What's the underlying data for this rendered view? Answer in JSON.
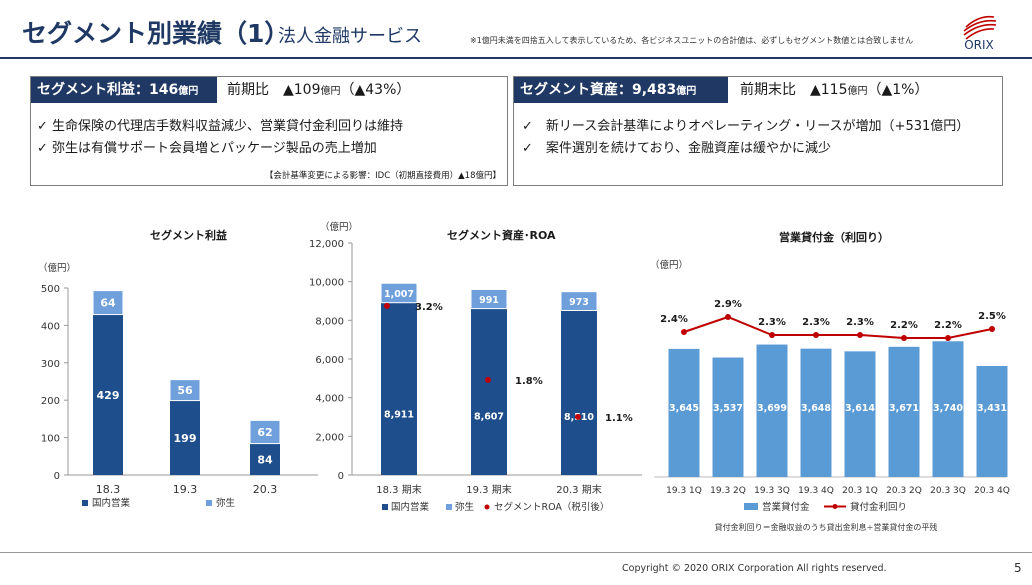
{
  "header": {
    "title": "セグメント別業績（1）",
    "subtitle": "法人金融サービス",
    "note": "※1億円未満を四捨五入して表示しているため、各ビジネスユニットの合計値は、必ずしもセグメント数値とは合致しません",
    "logo_text": "ORIX"
  },
  "profit_box": {
    "head_label": "セグメント利益：146",
    "head_unit": "億円",
    "cmp_prefix": "前期比　▲109",
    "cmp_unit": "億円",
    "cmp_suffix": "（▲43%）",
    "bullets": [
      "✓ 生命保険の代理店手数料収益減少、営業貸付金利回りは維持",
      "✓ 弥生は有償サポート会員増とパッケージ製品の売上増加"
    ],
    "note": "【会計基準変更による影響：IDC（初期直接費用）▲18億円】"
  },
  "assets_box": {
    "head_label": "セグメント資産：9,483",
    "head_unit": "億円",
    "cmp_prefix": "前期末比　▲115",
    "cmp_unit": "億円",
    "cmp_suffix": "（▲1%）",
    "bullets": [
      "✓　新リース会計基準によりオペレーティング・リースが増加（+531億円）",
      "✓　案件選別を続けており、金融資産は緩やかに減少"
    ]
  },
  "chart_data": [
    {
      "type": "bar",
      "title": "セグメント利益",
      "unit_label": "（億円）",
      "categories": [
        "18.3",
        "19.3",
        "20.3"
      ],
      "series": [
        {
          "name": "国内営業",
          "values": [
            429,
            199,
            84
          ],
          "color": "#1f4e8c"
        },
        {
          "name": "弥生",
          "values": [
            64,
            56,
            62
          ],
          "color": "#6fa0dc"
        }
      ],
      "ylim": [
        0,
        500
      ],
      "yticks": [
        "0",
        "100",
        "200",
        "300",
        "400",
        "500"
      ],
      "stacked": true,
      "legend": "bottom"
    },
    {
      "type": "bar",
      "title": "セグメント資産･ROA",
      "unit_label": "（億円）",
      "categories": [
        "18.3 期末",
        "19.3 期末",
        "20.3 期末"
      ],
      "series": [
        {
          "name": "国内営業",
          "values": [
            8911,
            8607,
            8510
          ],
          "color": "#1f4e8c"
        },
        {
          "name": "弥生",
          "values": [
            1007,
            991,
            973
          ],
          "color": "#6fa0dc"
        },
        {
          "name": "セグメントROA（税引後）",
          "values": [
            3.2,
            1.8,
            1.1
          ],
          "value_labels": [
            "3.2%",
            "1.8%",
            "1.1%"
          ],
          "color": "#c00000"
        }
      ],
      "ylim": [
        0,
        12000
      ],
      "yticks": [
        "0",
        "2,000",
        "4,000",
        "6,000",
        "8,000",
        "10,000",
        "12,000"
      ],
      "stacked": true,
      "legend": "bottom"
    },
    {
      "type": "bar",
      "title": "営業貸付金（利回り）",
      "unit_label": "（億円）",
      "categories": [
        "19.3 1Q",
        "19.3 2Q",
        "19.3 3Q",
        "19.3 4Q",
        "20.3 1Q",
        "20.3 2Q",
        "20.3 3Q",
        "20.3 4Q"
      ],
      "series": [
        {
          "name": "営業貸付金",
          "values": [
            3645,
            3537,
            3699,
            3648,
            3614,
            3671,
            3740,
            3431
          ],
          "value_labels": [
            "3,645",
            "3,537",
            "3,699",
            "3,648",
            "3,614",
            "3,671",
            "3,740",
            "3,431"
          ],
          "color": "#5b9bd5"
        },
        {
          "name": "貸付金利回り",
          "values": [
            2.4,
            2.9,
            2.3,
            2.3,
            2.3,
            2.2,
            2.2,
            2.5
          ],
          "value_labels": [
            "2.4%",
            "2.9%",
            "2.3%",
            "2.3%",
            "2.3%",
            "2.2%",
            "2.2%",
            "2.5%"
          ],
          "color": "#c00000"
        }
      ],
      "legend": "bottom",
      "footnote": "貸付金利回り＝金融収益のうち貸出金利息÷営業貸付金の平残"
    }
  ],
  "footer": {
    "copyright": "Copyright © 2020 ORIX Corporation  All rights reserved.",
    "page": "5"
  }
}
